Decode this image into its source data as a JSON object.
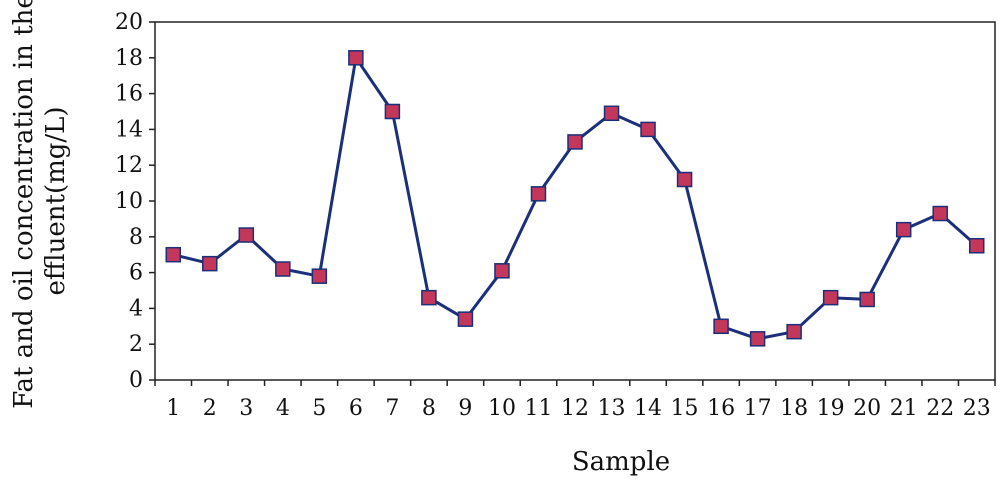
{
  "chart_data": {
    "type": "line",
    "xlabel": "Sample",
    "ylabel_lines": [
      "Fat and oil concentration in the",
      "effluent(mg/L)"
    ],
    "ylim": [
      0,
      20
    ],
    "yticks": [
      0,
      2,
      4,
      6,
      8,
      10,
      12,
      14,
      16,
      18,
      20
    ],
    "categories": [
      "1",
      "2",
      "3",
      "4",
      "5",
      "6",
      "7",
      "8",
      "9",
      "10",
      "11",
      "12",
      "13",
      "14",
      "15",
      "16",
      "17",
      "18",
      "19",
      "20",
      "21",
      "22",
      "23"
    ],
    "series": [
      {
        "values": [
          7.0,
          6.5,
          8.1,
          6.2,
          5.8,
          18.0,
          15.0,
          4.6,
          3.4,
          6.1,
          10.4,
          13.3,
          14.9,
          14.0,
          11.2,
          3.0,
          2.3,
          2.7,
          4.6,
          4.5,
          8.4,
          9.3,
          7.5
        ],
        "line_color": "#1c2f7a",
        "marker_color": "#c2375a"
      }
    ],
    "grid": false,
    "legend": "none"
  }
}
